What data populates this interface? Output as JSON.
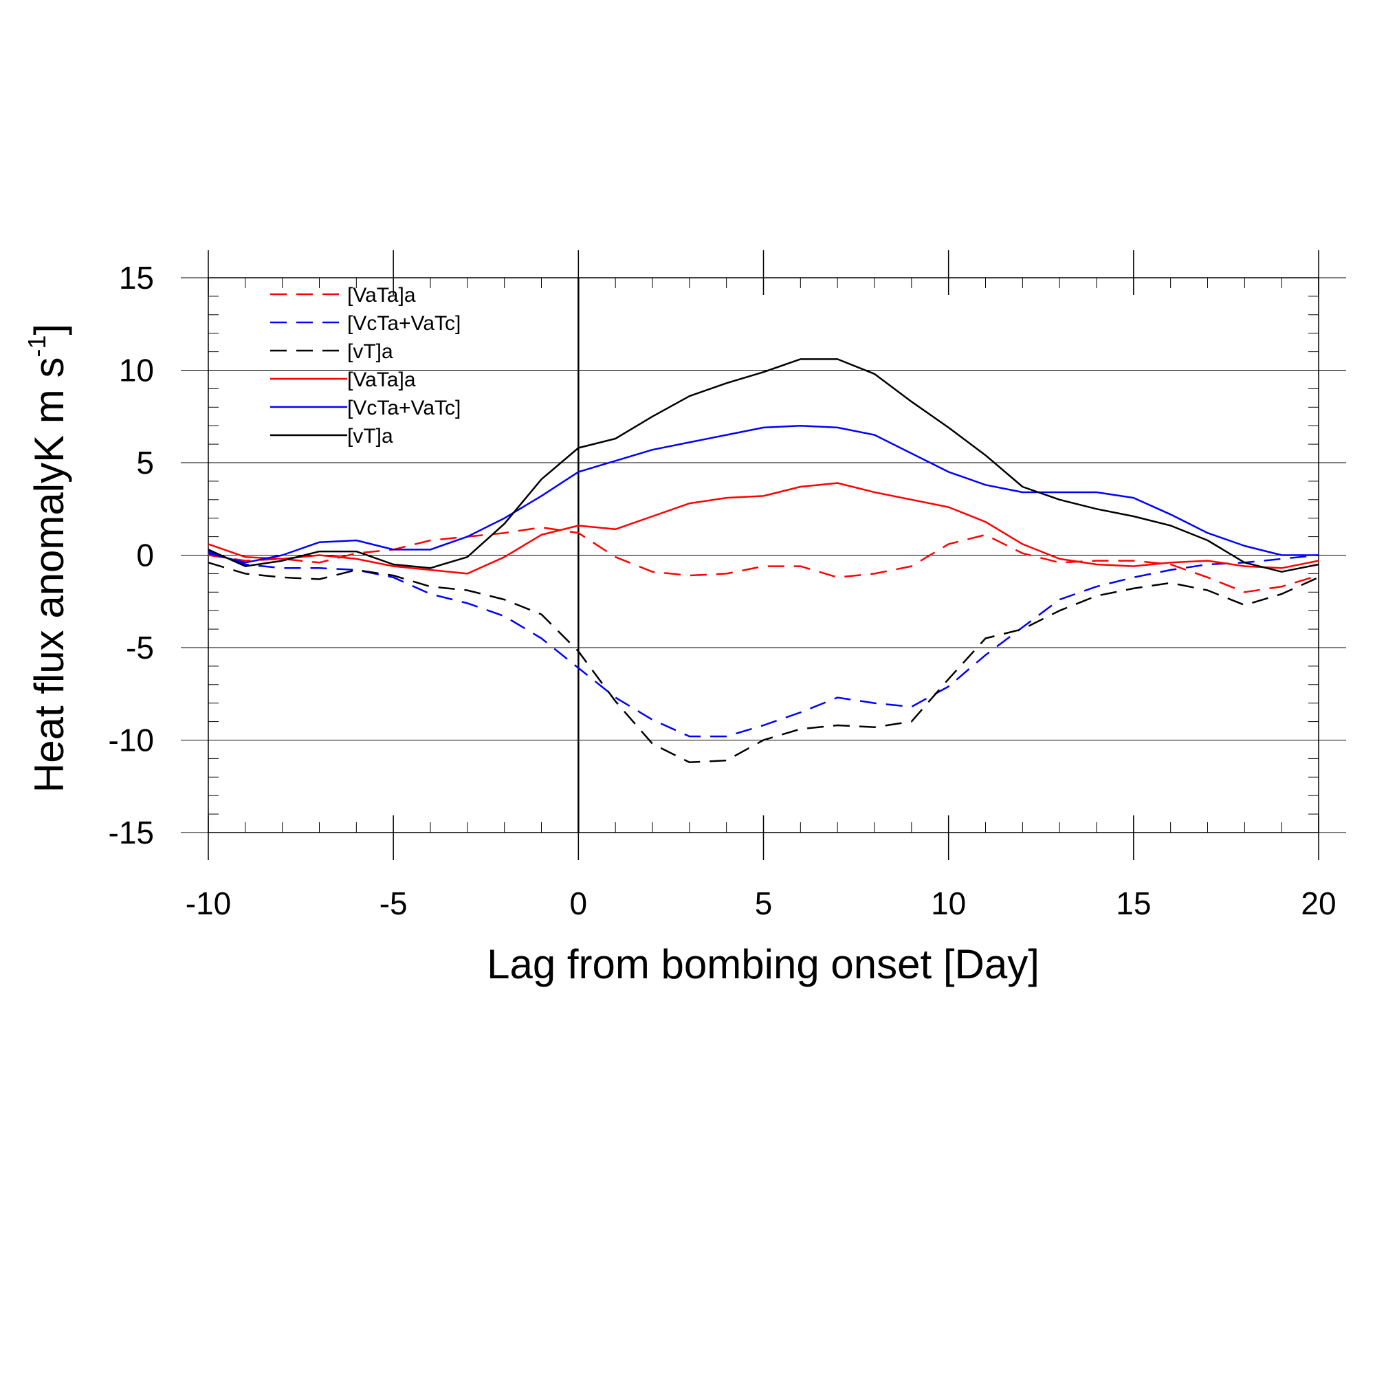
{
  "chart_data": {
    "type": "line",
    "xlabel": "Lag from bombing onset [Day]",
    "ylabel": "Heat flux anomalyK m s",
    "ylabel_sup": "-1",
    "ylabel_close": "]",
    "xlim": [
      -10,
      20
    ],
    "ylim": [
      -15,
      15
    ],
    "xticks": [
      -10,
      -5,
      0,
      5,
      10,
      15,
      20
    ],
    "yticks": [
      -15,
      -10,
      -5,
      0,
      5,
      10,
      15
    ],
    "x": [
      -10,
      -9,
      -8,
      -7,
      -6,
      -5,
      -4,
      -3,
      -2,
      -1,
      0,
      1,
      2,
      3,
      4,
      5,
      6,
      7,
      8,
      9,
      10,
      11,
      12,
      13,
      14,
      15,
      16,
      17,
      18,
      19,
      20
    ],
    "reference_lines": {
      "x": 0,
      "y": 0
    },
    "series": [
      {
        "name": "[VaTa]a",
        "color": "#ff0000",
        "dash": true,
        "values": [
          0.0,
          -0.3,
          -0.2,
          -0.4,
          0.1,
          0.3,
          0.8,
          1.0,
          1.2,
          1.5,
          1.2,
          -0.1,
          -0.9,
          -1.1,
          -1.0,
          -0.6,
          -0.6,
          -1.2,
          -1.0,
          -0.6,
          0.6,
          1.1,
          0.1,
          -0.4,
          -0.3,
          -0.3,
          -0.5,
          -1.2,
          -2.0,
          -1.7,
          -1.1
        ]
      },
      {
        "name": "[VcTa+VaTc]",
        "color": "#0000ff",
        "dash": true,
        "values": [
          0.2,
          -0.5,
          -0.7,
          -0.7,
          -0.8,
          -1.2,
          -2.1,
          -2.6,
          -3.3,
          -4.5,
          -6.1,
          -7.7,
          -8.9,
          -9.8,
          -9.8,
          -9.2,
          -8.5,
          -7.7,
          -8.0,
          -8.2,
          -7.1,
          -5.4,
          -3.9,
          -2.4,
          -1.7,
          -1.2,
          -0.8,
          -0.5,
          -0.4,
          -0.2,
          0.0
        ]
      },
      {
        "name": "[vT]a",
        "color": "#000000",
        "dash": true,
        "values": [
          -0.4,
          -1.0,
          -1.2,
          -1.3,
          -0.8,
          -1.1,
          -1.7,
          -1.9,
          -2.4,
          -3.2,
          -5.2,
          -7.9,
          -10.2,
          -11.2,
          -11.1,
          -10.0,
          -9.4,
          -9.2,
          -9.3,
          -9.0,
          -6.7,
          -4.5,
          -4.0,
          -3.0,
          -2.2,
          -1.8,
          -1.5,
          -1.9,
          -2.7,
          -2.1,
          -1.2
        ]
      },
      {
        "name": "[VaTa]a",
        "color": "#ff0000",
        "dash": false,
        "values": [
          0.6,
          -0.1,
          -0.2,
          0.0,
          -0.2,
          -0.6,
          -0.8,
          -1.0,
          -0.1,
          1.1,
          1.6,
          1.4,
          2.1,
          2.8,
          3.1,
          3.2,
          3.7,
          3.9,
          3.4,
          3.0,
          2.6,
          1.8,
          0.6,
          -0.2,
          -0.5,
          -0.6,
          -0.4,
          -0.3,
          -0.6,
          -0.7,
          -0.3
        ]
      },
      {
        "name": "[VcTa+VaTc]",
        "color": "#0000ff",
        "dash": false,
        "values": [
          0.1,
          -0.4,
          0.0,
          0.7,
          0.8,
          0.3,
          0.3,
          1.0,
          2.0,
          3.2,
          4.5,
          5.1,
          5.7,
          6.1,
          6.5,
          6.9,
          7.0,
          6.9,
          6.5,
          5.5,
          4.5,
          3.8,
          3.4,
          3.4,
          3.4,
          3.1,
          2.2,
          1.2,
          0.5,
          0.0,
          0.0
        ]
      },
      {
        "name": "[vT]a",
        "color": "#000000",
        "dash": false,
        "values": [
          0.3,
          -0.6,
          -0.3,
          0.2,
          0.2,
          -0.5,
          -0.7,
          -0.1,
          1.7,
          4.1,
          5.8,
          6.3,
          7.5,
          8.6,
          9.3,
          9.9,
          10.6,
          10.6,
          9.8,
          8.3,
          6.9,
          5.4,
          3.7,
          3.0,
          2.5,
          2.1,
          1.6,
          0.8,
          -0.4,
          -0.9,
          -0.5
        ]
      }
    ]
  }
}
